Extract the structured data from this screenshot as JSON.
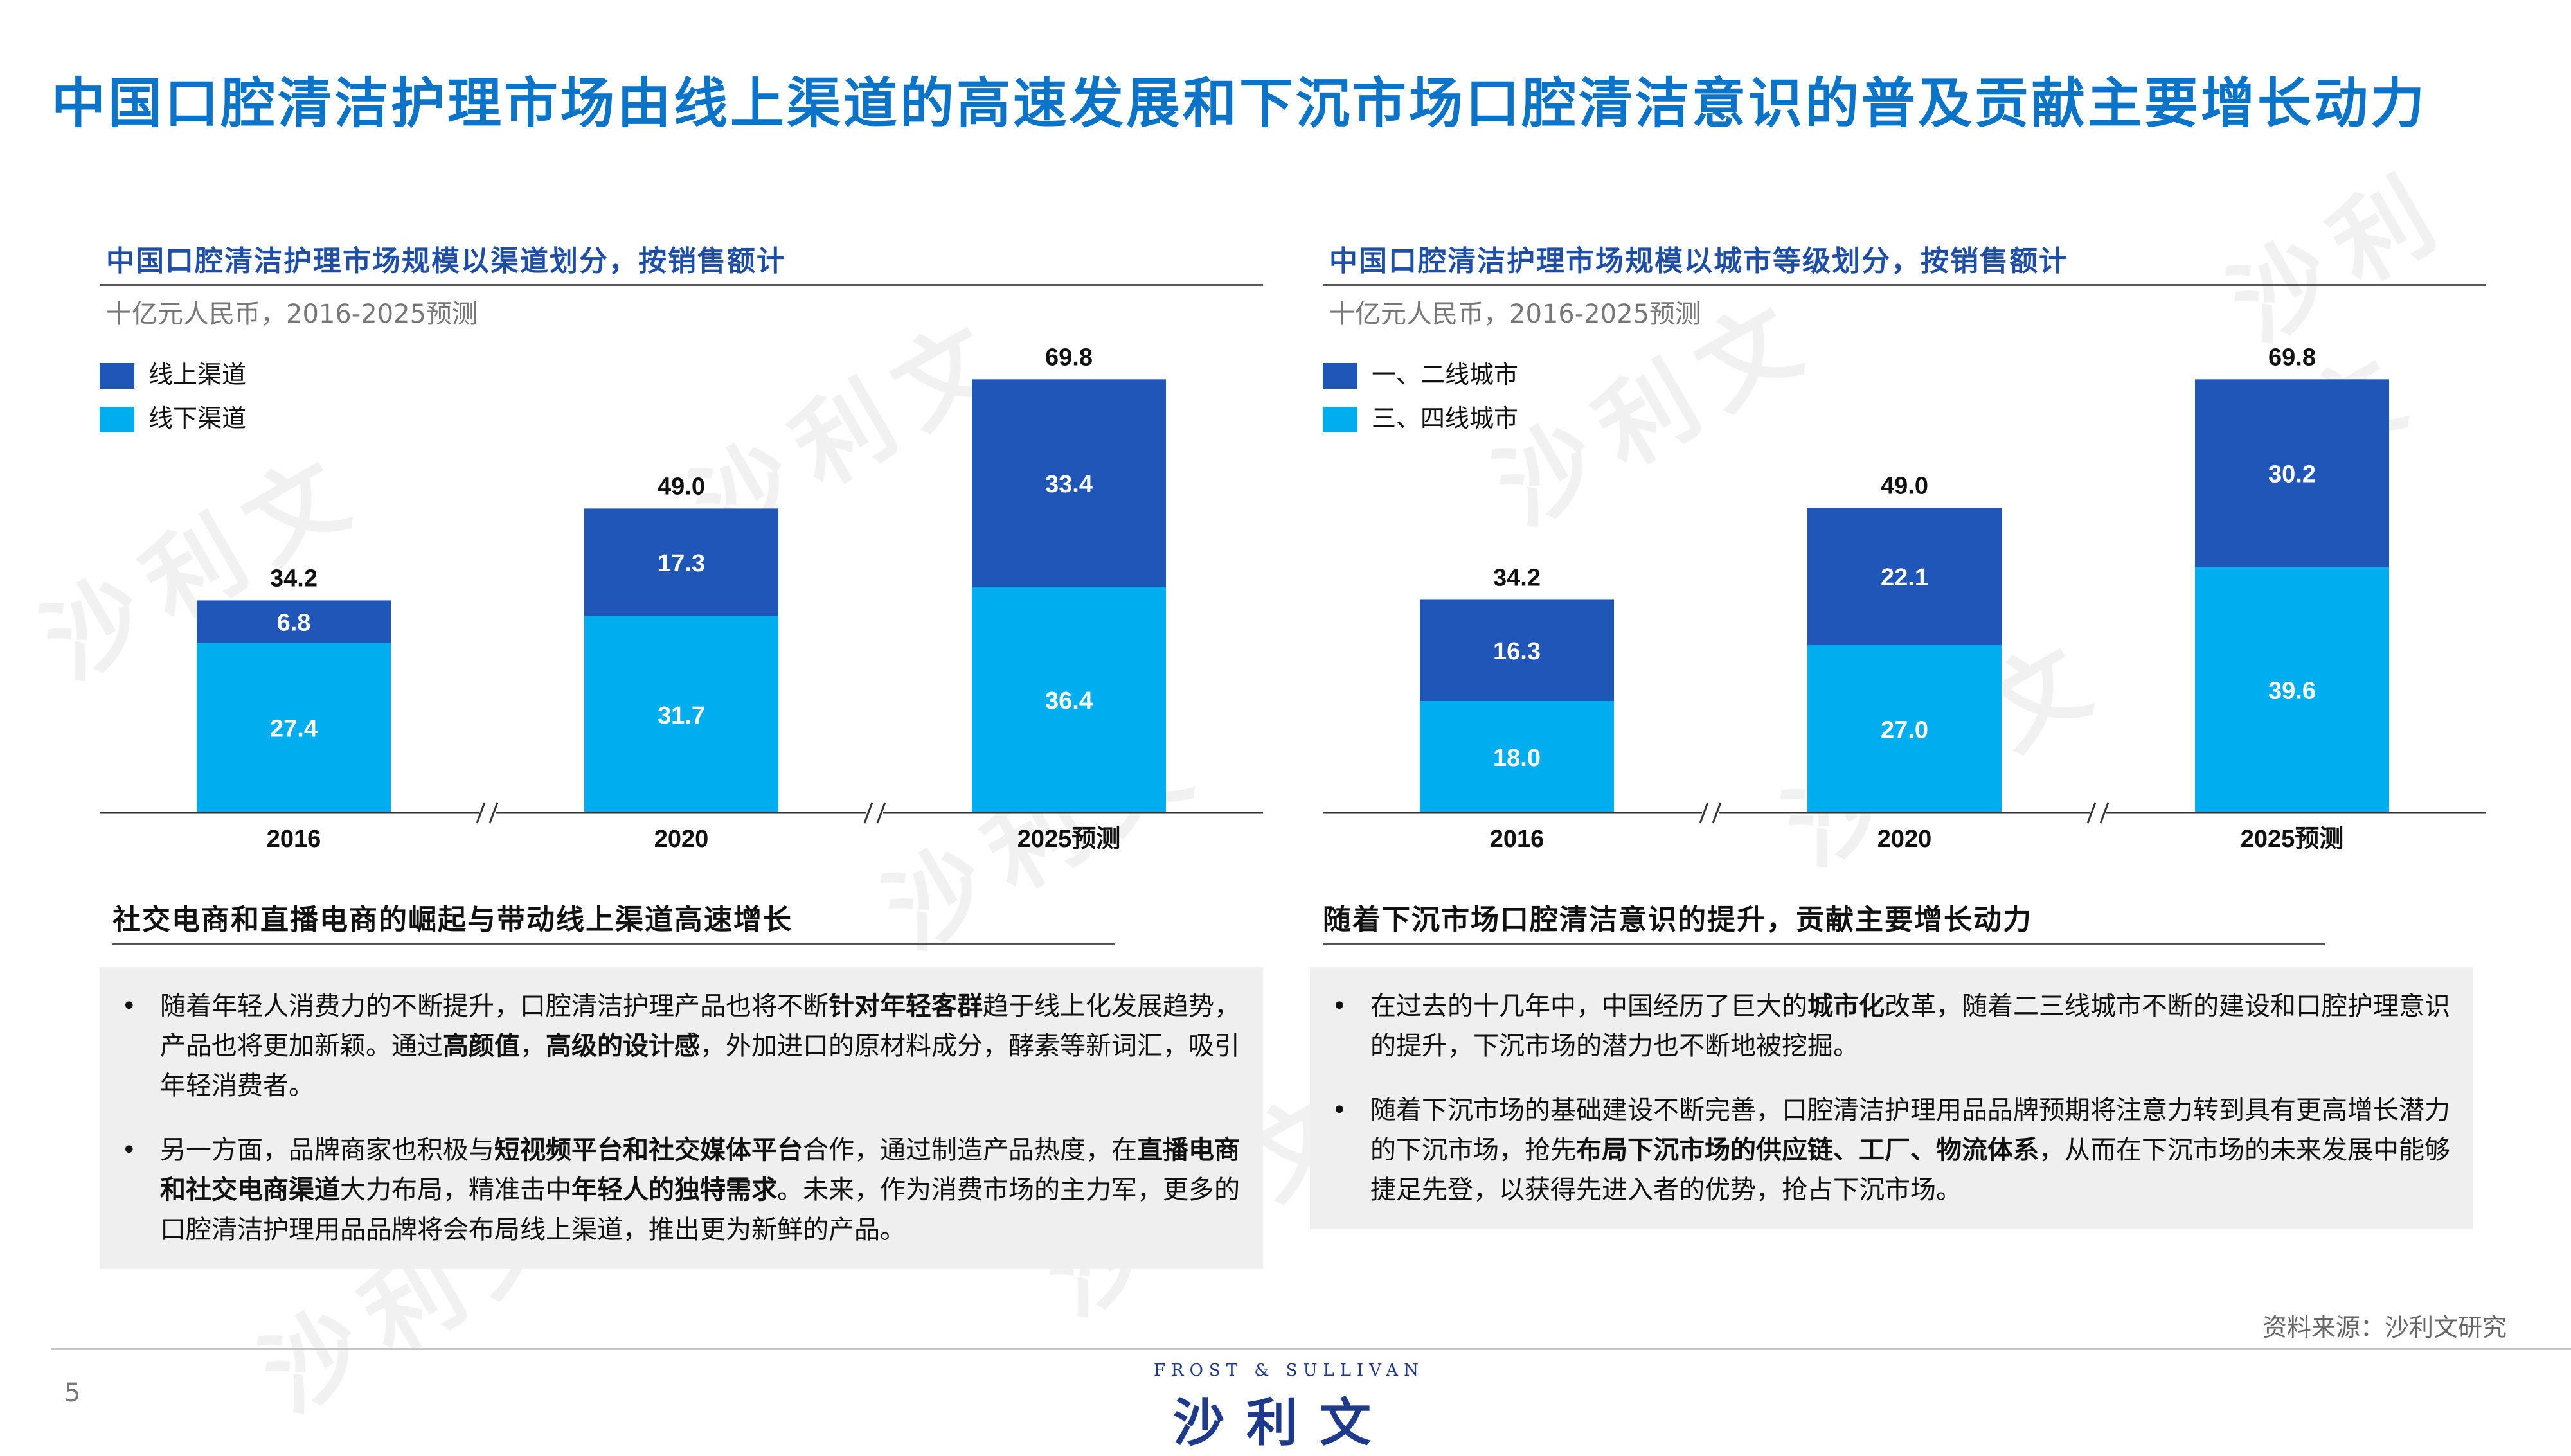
{
  "page": {
    "title": "中国口腔清洁护理市场由线上渠道的高速发展和下沉市场口腔清洁意识的普及贡献主要增长动力",
    "source": "资料来源：沙利文研究",
    "page_number": "5",
    "logo_en": "FROST & SULLIVAN",
    "logo_cn": "沙利文",
    "watermark": "沙利文"
  },
  "chart_data": [
    {
      "type": "bar",
      "stacked": true,
      "title": "中国口腔清洁护理市场规模以渠道划分，按销售额计",
      "unit": "十亿元人民币，2016-2025预测",
      "categories": [
        "2016",
        "2020",
        "2025预测"
      ],
      "series": [
        {
          "name": "线下渠道",
          "values": [
            27.4,
            31.7,
            36.4
          ],
          "color": "#00aeef"
        },
        {
          "name": "线上渠道",
          "values": [
            6.8,
            17.3,
            33.4
          ],
          "color": "#1f56b8"
        }
      ],
      "totals": [
        34.2,
        49.0,
        69.8
      ],
      "total_labels": [
        "34.2",
        "49.0",
        "69.8"
      ],
      "ylim": [
        0,
        70
      ],
      "legend": "top-left",
      "axis_breaks": true
    },
    {
      "type": "bar",
      "stacked": true,
      "title": "中国口腔清洁护理市场规模以城市等级划分，按销售额计",
      "unit": "十亿元人民币，2016-2025预测",
      "categories": [
        "2016",
        "2020",
        "2025预测"
      ],
      "series": [
        {
          "name": "三、四线城市",
          "values": [
            18.0,
            27.0,
            39.6
          ],
          "color": "#00aeef"
        },
        {
          "name": "一、二线城市",
          "values": [
            16.3,
            22.1,
            30.2
          ],
          "color": "#1f56b8"
        }
      ],
      "totals": [
        34.2,
        49.0,
        69.8
      ],
      "total_labels": [
        "34.2",
        "49.0",
        "69.8"
      ],
      "ylim": [
        0,
        70
      ],
      "legend": "top-left",
      "axis_breaks": true
    }
  ],
  "left_text": {
    "heading": "社交电商和直播电商的崛起与带动线上渠道高速增长",
    "bullets": [
      [
        {
          "t": "随着年轻人消费力的不断提升，口腔清洁护理产品也将不断"
        },
        {
          "t": "针对年轻客群",
          "bold": true
        },
        {
          "t": "趋于线上化发展趋势，产品也将更加新颖。通过"
        },
        {
          "t": "高颜值",
          "bold": true
        },
        {
          "t": "，"
        },
        {
          "t": "高级的设计感",
          "bold": true
        },
        {
          "t": "，外加进口的原材料成分，酵素等新词汇，吸引年轻消费者。"
        }
      ],
      [
        {
          "t": "另一方面，品牌商家也积极与"
        },
        {
          "t": "短视频平台和社交媒体平台",
          "bold": true
        },
        {
          "t": "合作，通过制造产品热度，在"
        },
        {
          "t": "直播电商和社交电商渠道",
          "bold": true
        },
        {
          "t": "大力布局，精准击中"
        },
        {
          "t": "年轻人的独特需求",
          "bold": true
        },
        {
          "t": "。未来，作为消费市场的主力军，更多的口腔清洁护理用品品牌将会布局线上渠道，推出更为新鲜的产品。"
        }
      ]
    ]
  },
  "right_text": {
    "heading": "随着下沉市场口腔清洁意识的提升，贡献主要增长动力",
    "bullets": [
      [
        {
          "t": "在过去的十几年中，中国经历了巨大的"
        },
        {
          "t": "城市化",
          "bold": true
        },
        {
          "t": "改革，随着二三线城市不断的建设和口腔护理意识的提升，下沉市场的潜力也不断地被挖掘。"
        }
      ],
      [
        {
          "t": "随着下沉市场的基础建设不断完善，口腔清洁护理用品品牌预期将注意力转到具有更高增长潜力的下沉市场，抢先"
        },
        {
          "t": "布局下沉市场的供应链、工厂、物流体系",
          "bold": true
        },
        {
          "t": "，从而在下沉市场的未来发展中能够捷足先登，以获得先进入者的优势，抢占下沉市场。"
        }
      ]
    ]
  }
}
